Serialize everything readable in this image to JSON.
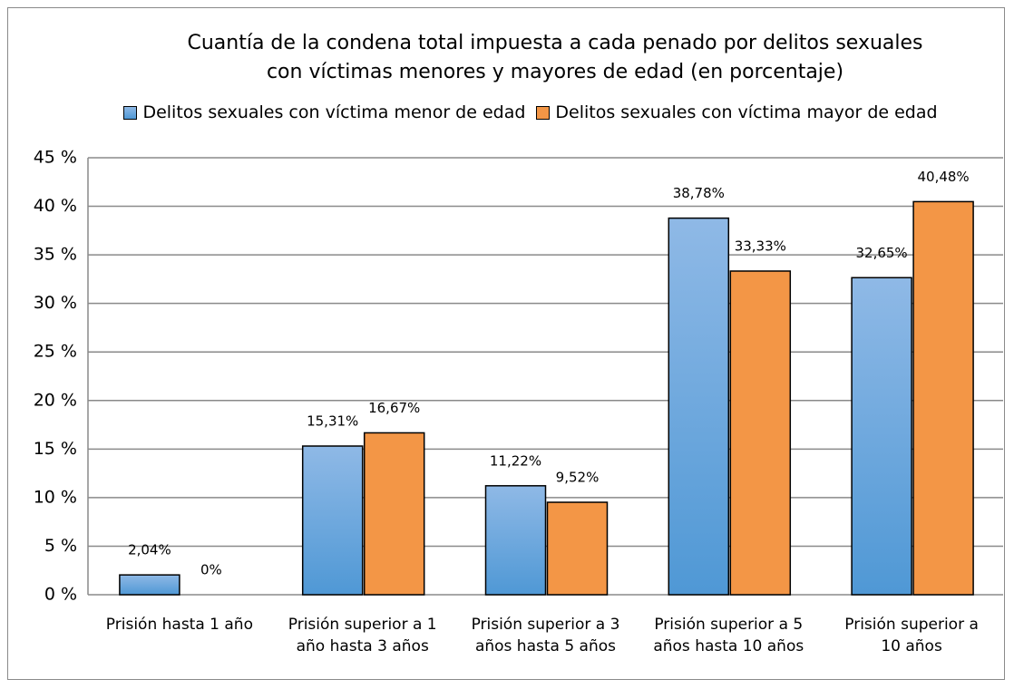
{
  "chart_data": {
    "type": "bar",
    "title": "Cuantía de la condena total impuesta a cada penado por delitos sexuales\ncon víctimas menores y mayores de edad (en porcentaje)",
    "categories": [
      "Prisión hasta 1 año",
      "Prisión superior a 1\naño hasta 3 años",
      "Prisión superior a 3\naños hasta 5 años",
      "Prisión superior a 5\naños hasta 10 años",
      "Prisión superior a\n10 años"
    ],
    "series": [
      {
        "name": "Delitos sexuales con víctima menor de edad",
        "color": "#5b9bd5",
        "values": [
          2.04,
          15.31,
          11.22,
          38.78,
          32.65
        ],
        "value_labels": [
          "2,04%",
          "15,31%",
          "11,22%",
          "38,78%",
          "32,65%"
        ]
      },
      {
        "name": "Delitos sexuales con víctima mayor de edad",
        "color": "#f39646",
        "values": [
          0,
          16.67,
          9.52,
          33.33,
          40.48
        ],
        "value_labels": [
          "0%",
          "16,67%",
          "9,52%",
          "33,33%",
          "40,48%"
        ]
      }
    ],
    "ylim": [
      0,
      45
    ],
    "yticks": [
      {
        "value": 0,
        "label": "0 %"
      },
      {
        "value": 5,
        "label": "5 %"
      },
      {
        "value": 10,
        "label": "10 %"
      },
      {
        "value": 15,
        "label": "15 %"
      },
      {
        "value": 20,
        "label": "20 %"
      },
      {
        "value": 25,
        "label": "25 %"
      },
      {
        "value": 30,
        "label": "30 %"
      },
      {
        "value": 35,
        "label": "35 %"
      },
      {
        "value": 40,
        "label": "40 %"
      },
      {
        "value": 45,
        "label": "45 %"
      }
    ],
    "grid": true,
    "legend": "top"
  }
}
